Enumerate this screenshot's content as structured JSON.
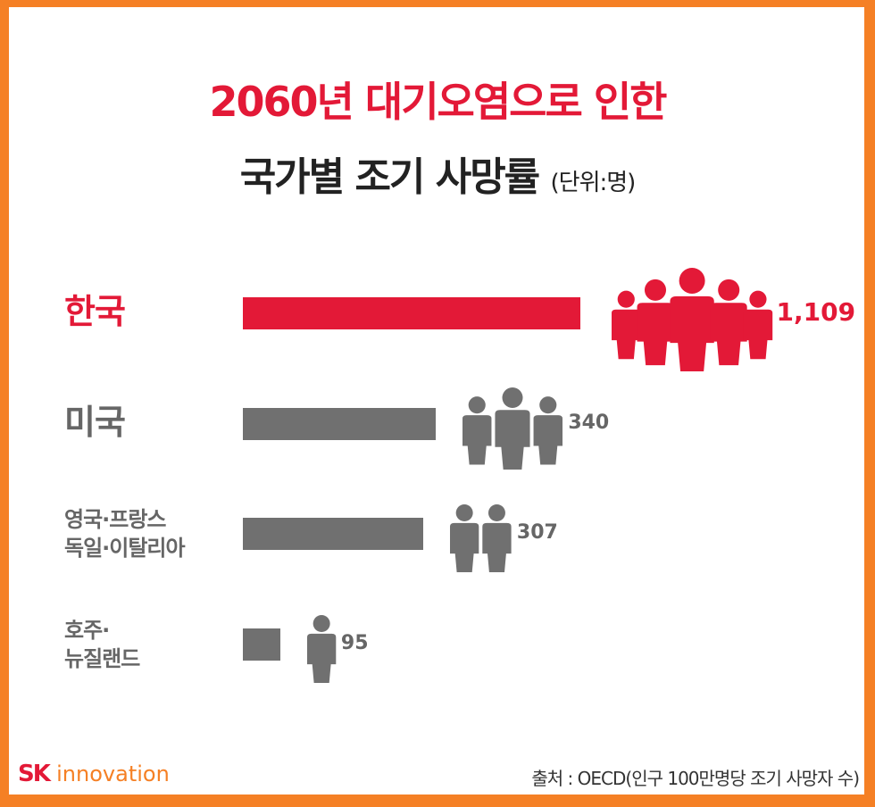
{
  "title_line1": "2060년 대기오염으로 인한",
  "title_line2": "국가별 조기 사망률",
  "unit": "(단위:명)",
  "colors": {
    "highlight": "#e31937",
    "default": "#707070",
    "border": "#f58025"
  },
  "chart_data": {
    "type": "bar",
    "orientation": "horizontal",
    "title": "2060년 대기오염으로 인한 국가별 조기 사망률",
    "unit": "명",
    "categories": [
      "한국",
      "미국",
      "영국·프랑스 독일·이탈리아",
      "호주· 뉴질랜드"
    ],
    "category_lines": [
      [
        "한국"
      ],
      [
        "미국"
      ],
      [
        "영국·프랑스",
        "독일·이탈리아"
      ],
      [
        "호주·",
        "뉴질랜드"
      ]
    ],
    "values": [
      1109,
      340,
      307,
      95
    ],
    "value_labels": [
      "1,109",
      "340",
      "307",
      "95"
    ],
    "icon_counts": [
      5,
      3,
      2,
      1
    ],
    "highlight_index": 0
  },
  "source": "출처 : OECD(인구 100만명당 조기 사망자 수)",
  "logo": {
    "sk": "SK",
    "innovation": "innovation"
  }
}
